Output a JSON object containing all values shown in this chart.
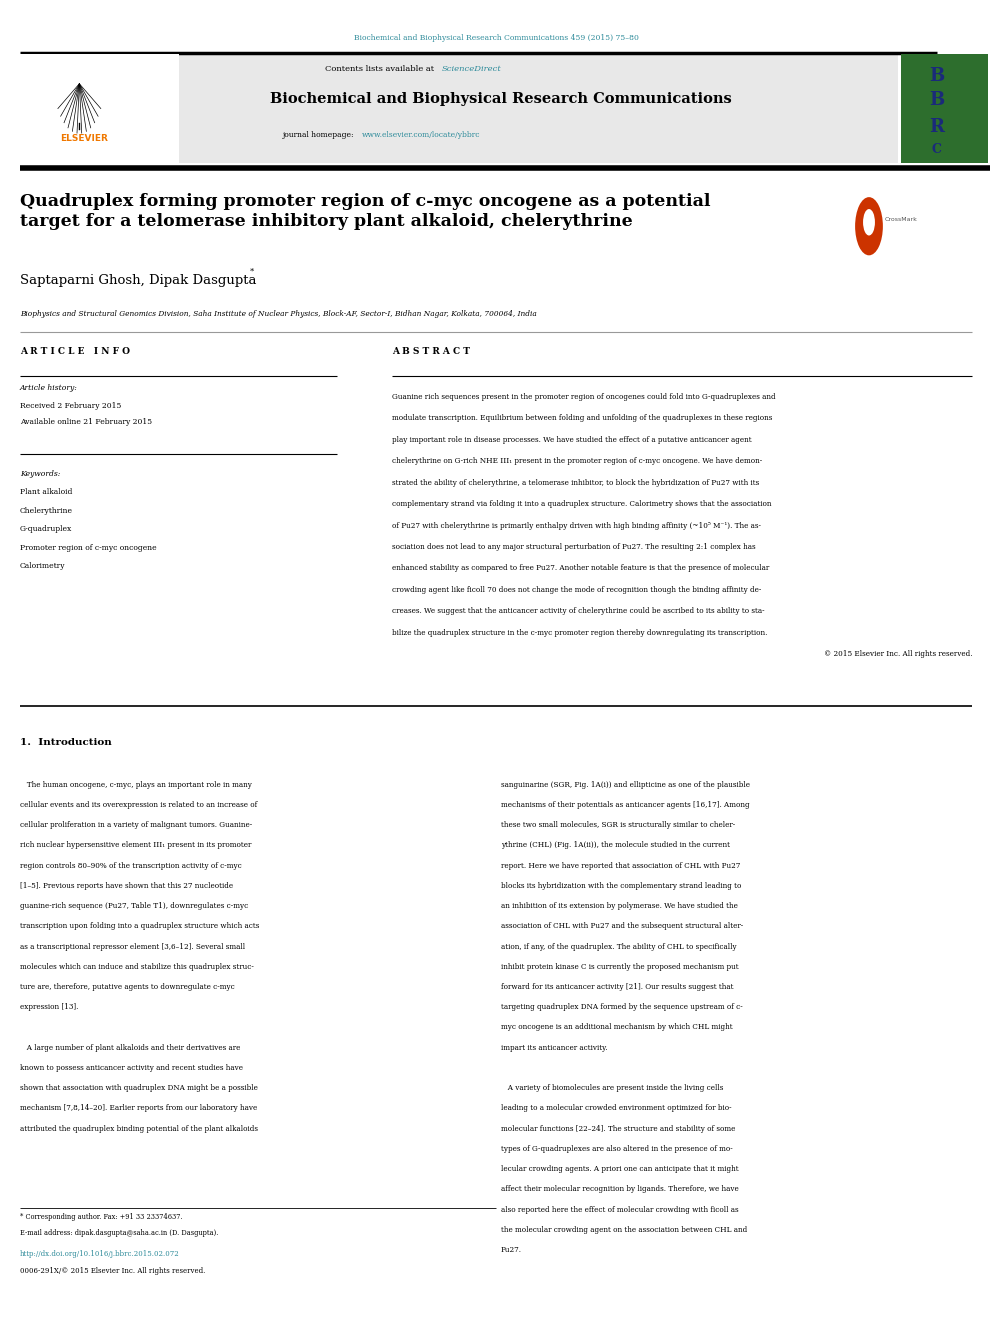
{
  "page_width": 9.92,
  "page_height": 13.23,
  "bg_color": "#ffffff",
  "top_citation": "Biochemical and Biophysical Research Communications 459 (2015) 75–80",
  "journal_name": "Biochemical and Biophysical Research Communications",
  "contents_line": "Contents lists available at ",
  "sciencedirect_text": "ScienceDirect",
  "journal_homepage_pre": "journal homepage: ",
  "journal_homepage_link": "www.elsevier.com/locate/ybbrc",
  "title": "Quadruplex forming promoter region of c-myc oncogene as a potential\ntarget for a telomerase inhibitory plant alkaloid, chelerythrine",
  "authors": "Saptaparni Ghosh, Dipak Dasgupta",
  "affiliation": "Biophysics and Structural Genomics Division, Saha Institute of Nuclear Physics, Block-AF, Sector-I, Bidhan Nagar, Kolkata, 700064, India",
  "article_info_header": "A R T I C L E   I N F O",
  "article_history_header": "Article history:",
  "received": "Received 2 February 2015",
  "available": "Available online 21 February 2015",
  "keywords_header": "Keywords:",
  "keywords": [
    "Plant alkaloid",
    "Chelerythrine",
    "G-quadruplex",
    "Promoter region of c-myc oncogene",
    "Calorimetry"
  ],
  "abstract_header": "A B S T R A C T",
  "intro_header": "1.  Introduction",
  "footer_note": "* Corresponding author. Fax: +91 33 23374637.",
  "footer_email": "E-mail address: dipak.dasgupta@saha.ac.in (D. Dasgupta).",
  "footer_doi": "http://dx.doi.org/10.1016/j.bbrc.2015.02.072",
  "footer_issn": "0006-291X/© 2015 Elsevier Inc. All rights reserved.",
  "header_bar_color": "#2e8b9a",
  "elsevier_color": "#f07800",
  "sciencedirect_color": "#2e8b9a",
  "link_color": "#2e8b9a",
  "header_bg": "#e8e8e8",
  "bbrc_journal_bg": "#2d6e2d",
  "abstract_lines": [
    "Guanine rich sequences present in the promoter region of oncogenes could fold into G-quadruplexes and",
    "modulate transcription. Equilibrium between folding and unfolding of the quadruplexes in these regions",
    "play important role in disease processes. We have studied the effect of a putative anticancer agent",
    "chelerythrine on G-rich NHE III₁ present in the promoter region of c-myc oncogene. We have demon-",
    "strated the ability of chelerythrine, a telomerase inhibitor, to block the hybridization of Pu27 with its",
    "complementary strand via folding it into a quadruplex structure. Calorimetry shows that the association",
    "of Pu27 with chelerythrine is primarily enthalpy driven with high binding affinity (~10⁵ M⁻¹). The as-",
    "sociation does not lead to any major structural perturbation of Pu27. The resulting 2:1 complex has",
    "enhanced stability as compared to free Pu27. Another notable feature is that the presence of molecular",
    "crowding agent like ficoll 70 does not change the mode of recognition though the binding affinity de-",
    "creases. We suggest that the anticancer activity of chelerythrine could be ascribed to its ability to sta-",
    "bilize the quadruplex structure in the c-myc promoter region thereby downregulating its transcription.",
    "© 2015 Elsevier Inc. All rights reserved."
  ],
  "left_intro_lines": [
    "   The human oncogene, c-myc, plays an important role in many",
    "cellular events and its overexpression is related to an increase of",
    "cellular proliferation in a variety of malignant tumors. Guanine-",
    "rich nuclear hypersensitive element III₁ present in its promoter",
    "region controls 80–90% of the transcription activity of c-myc",
    "[1–5]. Previous reports have shown that this 27 nucleotide",
    "guanine-rich sequence (Pu27, Table T1), downregulates c-myc",
    "transcription upon folding into a quadruplex structure which acts",
    "as a transcriptional repressor element [3,6–12]. Several small",
    "molecules which can induce and stabilize this quadruplex struc-",
    "ture are, therefore, putative agents to downregulate c-myc",
    "expression [13].",
    "",
    "   A large number of plant alkaloids and their derivatives are",
    "known to possess anticancer activity and recent studies have",
    "shown that association with quadruplex DNA might be a possible",
    "mechanism [7,8,14–20]. Earlier reports from our laboratory have",
    "attributed the quadruplex binding potential of the plant alkaloids"
  ],
  "right_intro_lines": [
    "sanguinarine (SGR, Fig. 1A(i)) and ellipticine as one of the plausible",
    "mechanisms of their potentials as anticancer agents [16,17]. Among",
    "these two small molecules, SGR is structurally similar to cheler-",
    "ythrine (CHL) (Fig. 1A(ii)), the molecule studied in the current",
    "report. Here we have reported that association of CHL with Pu27",
    "blocks its hybridization with the complementary strand leading to",
    "an inhibition of its extension by polymerase. We have studied the",
    "association of CHL with Pu27 and the subsequent structural alter-",
    "ation, if any, of the quadruplex. The ability of CHL to specifically",
    "inhibit protein kinase C is currently the proposed mechanism put",
    "forward for its anticancer activity [21]. Our results suggest that",
    "targeting quadruplex DNA formed by the sequence upstream of c-",
    "myc oncogene is an additional mechanism by which CHL might",
    "impart its anticancer activity.",
    "",
    "   A variety of biomolecules are present inside the living cells",
    "leading to a molecular crowded environment optimized for bio-",
    "molecular functions [22–24]. The structure and stability of some",
    "types of G-quadruplexes are also altered in the presence of mo-",
    "lecular crowding agents. A priori one can anticipate that it might",
    "affect their molecular recognition by ligands. Therefore, we have",
    "also reported here the effect of molecular crowding with ficoll as",
    "the molecular crowding agent on the association between CHL and",
    "Pu27."
  ]
}
